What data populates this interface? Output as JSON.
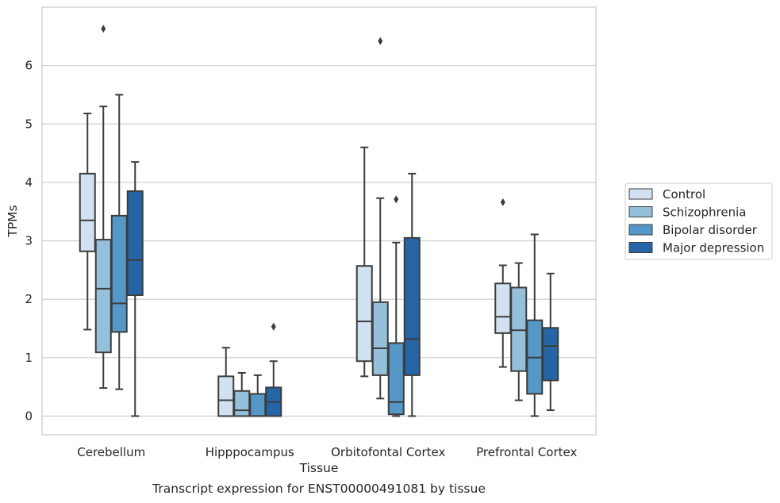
{
  "caption": "Transcript expression for ENST00000491081 by tissue",
  "chart_data": {
    "type": "box",
    "title": "",
    "xlabel": "Tissue",
    "ylabel": "TPMs",
    "ylim": [
      -0.32,
      7.0
    ],
    "yticks": [
      "0",
      "1",
      "2",
      "3",
      "4",
      "5",
      "6"
    ],
    "grid": true,
    "legend_position": "right",
    "categories": [
      "Cerebellum",
      "Hipppocampus",
      "Orbitofontal Cortex",
      "Prefrontal Cortex"
    ],
    "series": [
      {
        "name": "Control",
        "color": "#d1e1f1",
        "boxes": [
          {
            "whisker_low": 1.48,
            "q1": 2.82,
            "median": 3.35,
            "q3": 4.15,
            "whisker_high": 5.18,
            "outliers": []
          },
          {
            "whisker_low": 0.0,
            "q1": 0.0,
            "median": 0.27,
            "q3": 0.68,
            "whisker_high": 1.17,
            "outliers": []
          },
          {
            "whisker_low": 0.68,
            "q1": 0.94,
            "median": 1.62,
            "q3": 2.57,
            "whisker_high": 4.6,
            "outliers": []
          },
          {
            "whisker_low": 0.84,
            "q1": 1.42,
            "median": 1.7,
            "q3": 2.27,
            "whisker_high": 2.58,
            "outliers": [
              3.66
            ]
          }
        ]
      },
      {
        "name": "Schizophrenia",
        "color": "#94c0dc",
        "boxes": [
          {
            "whisker_low": 0.48,
            "q1": 1.09,
            "median": 2.18,
            "q3": 3.02,
            "whisker_high": 5.3,
            "outliers": [
              6.63
            ]
          },
          {
            "whisker_low": 0.0,
            "q1": 0.0,
            "median": 0.1,
            "q3": 0.43,
            "whisker_high": 0.74,
            "outliers": []
          },
          {
            "whisker_low": 0.3,
            "q1": 0.7,
            "median": 1.16,
            "q3": 1.95,
            "whisker_high": 3.73,
            "outliers": [
              6.42
            ]
          },
          {
            "whisker_low": 0.27,
            "q1": 0.77,
            "median": 1.47,
            "q3": 2.2,
            "whisker_high": 2.62,
            "outliers": []
          }
        ]
      },
      {
        "name": "Bipolar disorder",
        "color": "#5597c6",
        "boxes": [
          {
            "whisker_low": 0.46,
            "q1": 1.44,
            "median": 1.93,
            "q3": 3.43,
            "whisker_high": 5.5,
            "outliers": []
          },
          {
            "whisker_low": 0.0,
            "q1": 0.0,
            "median": 0.0,
            "q3": 0.38,
            "whisker_high": 0.7,
            "outliers": []
          },
          {
            "whisker_low": 0.0,
            "q1": 0.03,
            "median": 0.24,
            "q3": 1.25,
            "whisker_high": 2.97,
            "outliers": [
              3.71
            ]
          },
          {
            "whisker_low": 0.0,
            "q1": 0.38,
            "median": 1.0,
            "q3": 1.64,
            "whisker_high": 3.11,
            "outliers": []
          }
        ]
      },
      {
        "name": "Major depression",
        "color": "#2565a6",
        "boxes": [
          {
            "whisker_low": 0.0,
            "q1": 2.07,
            "median": 2.67,
            "q3": 3.85,
            "whisker_high": 4.35,
            "outliers": []
          },
          {
            "whisker_low": 0.0,
            "q1": 0.0,
            "median": 0.24,
            "q3": 0.49,
            "whisker_high": 0.94,
            "outliers": [
              1.53
            ]
          },
          {
            "whisker_low": 0.0,
            "q1": 0.7,
            "median": 1.32,
            "q3": 3.05,
            "whisker_high": 4.15,
            "outliers": []
          },
          {
            "whisker_low": 0.1,
            "q1": 0.61,
            "median": 1.2,
            "q3": 1.51,
            "whisker_high": 2.44,
            "outliers": []
          }
        ]
      }
    ]
  }
}
